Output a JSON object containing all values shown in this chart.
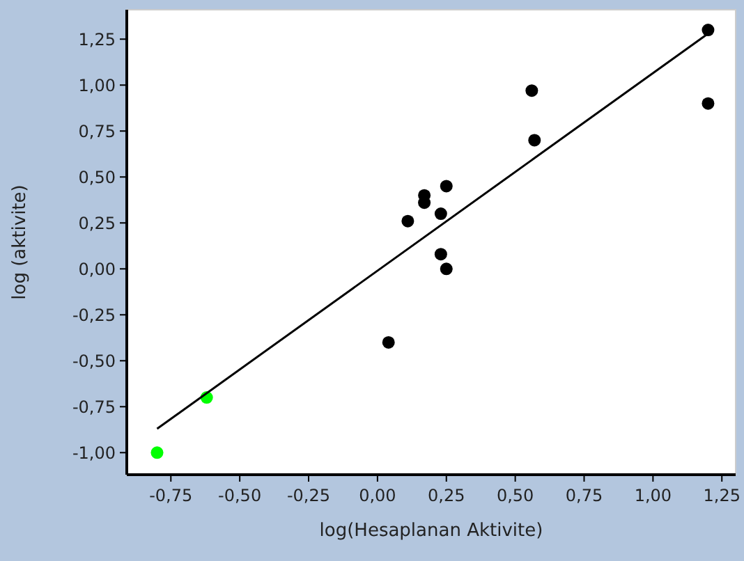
{
  "chart_data": {
    "type": "scatter",
    "xlabel": "log(Hesaplanan Aktivite)",
    "ylabel": "log (aktivite)",
    "marker": "circle",
    "grid": false,
    "xlim": [
      -0.91,
      1.3
    ],
    "ylim": [
      -1.12,
      1.41
    ],
    "xticks": [
      {
        "value": -0.75,
        "label": "-0,75"
      },
      {
        "value": -0.5,
        "label": "-0,50"
      },
      {
        "value": -0.25,
        "label": "-0,25"
      },
      {
        "value": 0,
        "label": "0,00"
      },
      {
        "value": 0.25,
        "label": "0,25"
      },
      {
        "value": 0.5,
        "label": "0,50"
      },
      {
        "value": 0.75,
        "label": "0,75"
      },
      {
        "value": 1,
        "label": "1,00"
      },
      {
        "value": 1.25,
        "label": "1,25"
      }
    ],
    "yticks": [
      {
        "value": -1,
        "label": "-1,00"
      },
      {
        "value": -0.75,
        "label": "-0,75"
      },
      {
        "value": -0.5,
        "label": "-0,50"
      },
      {
        "value": -0.25,
        "label": "-0,25"
      },
      {
        "value": 0,
        "label": "0,00"
      },
      {
        "value": 0.25,
        "label": "0,25"
      },
      {
        "value": 0.5,
        "label": "0,50"
      },
      {
        "value": 0.75,
        "label": "0,75"
      },
      {
        "value": 1,
        "label": "1,00"
      },
      {
        "value": 1.25,
        "label": "1,25"
      }
    ],
    "series": [
      {
        "color": "#000000",
        "x": [
          1.2,
          1.2,
          0.56,
          0.57,
          0.17,
          0.17,
          0.25,
          0.23,
          0.11,
          0.23,
          0.25,
          0.04
        ],
        "values": [
          1.3,
          0.9,
          0.97,
          0.7,
          0.4,
          0.36,
          0.45,
          0.3,
          0.26,
          0.08,
          0.0,
          -0.4
        ]
      },
      {
        "color": "#00ff00",
        "x": [
          -0.62,
          -0.8
        ],
        "values": [
          -0.7,
          -1.0
        ]
      },
      {
        "type": "line",
        "color": "#000000",
        "marker": "none",
        "x": [
          -0.8,
          1.2
        ],
        "values": [
          -0.87,
          1.28
        ]
      }
    ]
  }
}
